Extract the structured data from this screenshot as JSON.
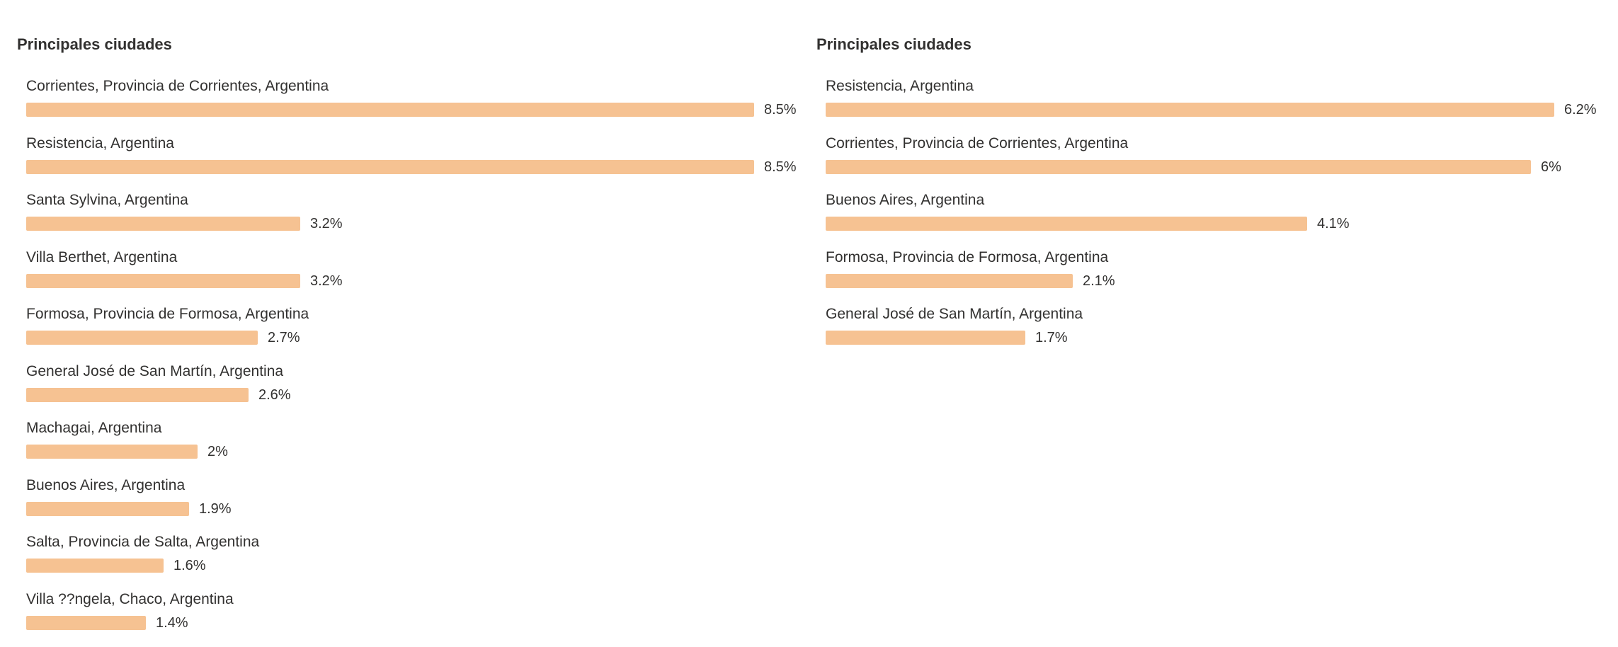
{
  "chart_data": [
    {
      "type": "bar",
      "orientation": "horizontal",
      "title": "Principales ciudades",
      "accent_color": "#f6c292",
      "categories": [
        "Corrientes, Provincia de Corrientes, Argentina",
        "Resistencia, Argentina",
        "Santa Sylvina, Argentina",
        "Villa Berthet, Argentina",
        "Formosa, Provincia de Formosa, Argentina",
        "General José de San Martín, Argentina",
        "Machagai, Argentina",
        "Buenos Aires, Argentina",
        "Salta, Provincia de Salta, Argentina",
        "Villa ??ngela, Chaco, Argentina"
      ],
      "values": [
        8.5,
        8.5,
        3.2,
        3.2,
        2.7,
        2.6,
        2,
        1.9,
        1.6,
        1.4
      ],
      "value_labels": [
        "8.5%",
        "8.5%",
        "3.2%",
        "3.2%",
        "2.7%",
        "2.6%",
        "2%",
        "1.9%",
        "1.6%",
        "1.4%"
      ]
    },
    {
      "type": "bar",
      "orientation": "horizontal",
      "title": "Principales ciudades",
      "accent_color": "#f6c292",
      "categories": [
        "Resistencia, Argentina",
        "Corrientes, Provincia de Corrientes, Argentina",
        "Buenos Aires, Argentina",
        "Formosa, Provincia de Formosa, Argentina",
        "General José de San Martín, Argentina"
      ],
      "values": [
        6.2,
        6,
        4.1,
        2.1,
        1.7
      ],
      "value_labels": [
        "6.2%",
        "6%",
        "4.1%",
        "2.1%",
        "1.7%"
      ]
    }
  ]
}
